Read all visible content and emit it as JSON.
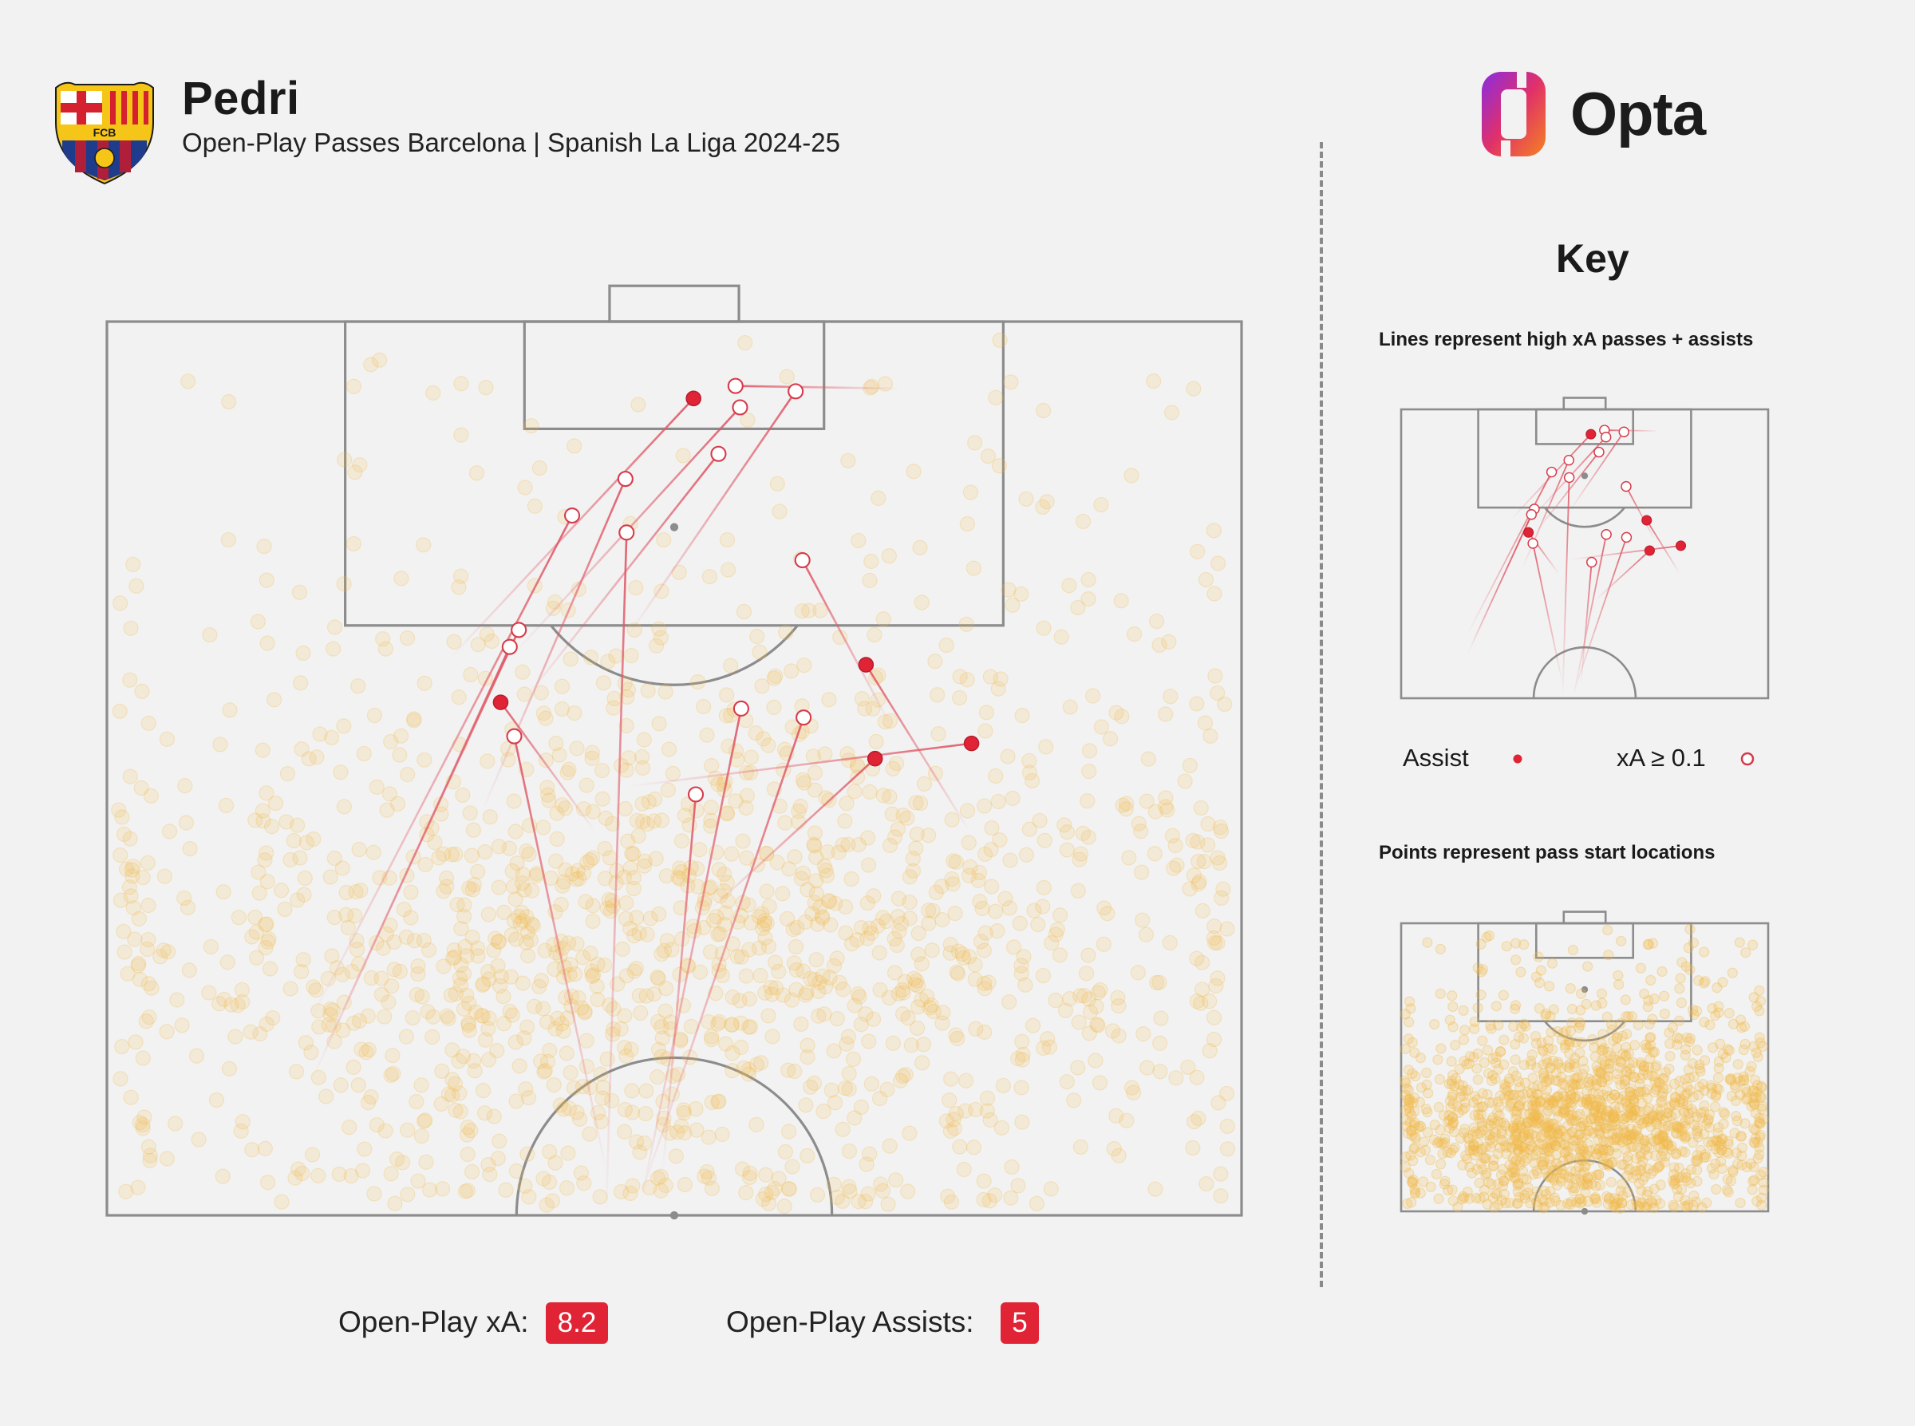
{
  "header": {
    "player_name": "Pedri",
    "subtitle": "Open-Play Passes Barcelona | Spanish La Liga 2024-25",
    "crest_text": "FCB",
    "brand": "Opta"
  },
  "key": {
    "title": "Key",
    "lines_note": "Lines represent high xA passes + assists",
    "points_note": "Points represent pass start locations",
    "assist_label": "Assist",
    "xa_label": "xA ≥ 0.1"
  },
  "stats": {
    "xa_label": "Open-Play xA:",
    "xa_value": "8.2",
    "assists_label": "Open-Play Assists:",
    "assists_value": "5"
  },
  "colors": {
    "assist": "#e02436",
    "pass_line": "#e05a68",
    "start_point": "#f0b94a",
    "pitch_line": "#8c8c8c",
    "background": "#f2f2f2"
  },
  "chart_data": {
    "type": "scatter",
    "description_units": "pitch coordinates: x = width across (0-100, left to right), y = distance from attacking goal line (0-100)",
    "passes": [
      {
        "type": "assist",
        "end": [
          51.7,
          8.6
        ],
        "start": [
          30.0,
          38.0
        ]
      },
      {
        "type": "assist",
        "end": [
          34.7,
          42.6
        ],
        "start": [
          43.0,
          57.0
        ]
      },
      {
        "type": "assist",
        "end": [
          66.9,
          38.4
        ],
        "start": [
          76.0,
          57.0
        ]
      },
      {
        "type": "assist",
        "end": [
          67.7,
          48.9
        ],
        "start": [
          53.0,
          66.0
        ]
      },
      {
        "type": "assist",
        "end": [
          76.2,
          47.2
        ],
        "start": [
          46.0,
          52.0
        ]
      },
      {
        "type": "xa",
        "end": [
          55.4,
          7.2
        ],
        "start": [
          70.0,
          7.5
        ]
      },
      {
        "type": "xa",
        "end": [
          60.7,
          7.8
        ],
        "start": [
          46.0,
          35.0
        ]
      },
      {
        "type": "xa",
        "end": [
          55.8,
          9.6
        ],
        "start": [
          36.0,
          37.0
        ]
      },
      {
        "type": "xa",
        "end": [
          53.9,
          14.8
        ],
        "start": [
          37.0,
          42.0
        ]
      },
      {
        "type": "xa",
        "end": [
          45.7,
          17.6
        ],
        "start": [
          33.0,
          55.0
        ]
      },
      {
        "type": "xa",
        "end": [
          41.0,
          21.7
        ],
        "start": [
          18.0,
          78.0
        ]
      },
      {
        "type": "xa",
        "end": [
          45.8,
          23.6
        ],
        "start": [
          44.0,
          100.0
        ]
      },
      {
        "type": "xa",
        "end": [
          61.3,
          26.7
        ],
        "start": [
          69.0,
          45.0
        ]
      },
      {
        "type": "xa",
        "end": [
          36.3,
          34.5
        ],
        "start": [
          19.0,
          82.0
        ]
      },
      {
        "type": "xa",
        "end": [
          35.5,
          36.4
        ],
        "start": [
          18.0,
          85.0
        ]
      },
      {
        "type": "xa",
        "end": [
          35.9,
          46.4
        ],
        "start": [
          44.0,
          95.0
        ]
      },
      {
        "type": "xa",
        "end": [
          55.9,
          43.3
        ],
        "start": [
          47.0,
          99.0
        ]
      },
      {
        "type": "xa",
        "end": [
          61.4,
          44.3
        ],
        "start": [
          47.0,
          98.0
        ]
      },
      {
        "type": "xa",
        "end": [
          51.9,
          52.9
        ],
        "start": [
          49.0,
          95.0
        ]
      }
    ]
  }
}
